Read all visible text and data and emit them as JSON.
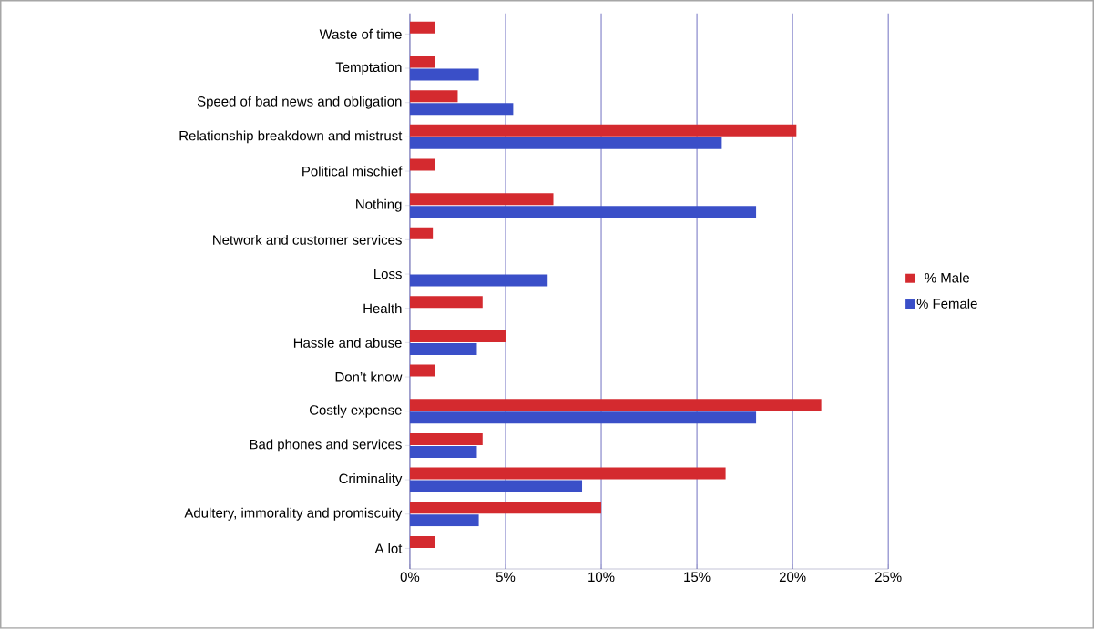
{
  "chart_data": {
    "type": "bar",
    "orientation": "horizontal",
    "categories": [
      "Waste of time",
      "Temptation",
      "Speed of bad news and obligation",
      "Relationship breakdown and mistrust",
      "Political mischief",
      "Nothing",
      "Network and customer services",
      "Loss",
      "Health",
      "Hassle and abuse",
      "Don’t know",
      "Costly expense",
      "Bad phones and services",
      "Criminality",
      "Adultery, immorality and promiscuity",
      "A lot"
    ],
    "series": [
      {
        "name": "% Male",
        "color": "#d42a2f",
        "values": [
          1.3,
          1.3,
          2.5,
          20.2,
          1.3,
          7.5,
          1.2,
          null,
          3.8,
          5.0,
          1.3,
          21.5,
          3.8,
          16.5,
          10.0,
          1.3
        ]
      },
      {
        "name": "% Female",
        "color": "#3a4fc8",
        "values": [
          null,
          3.6,
          5.4,
          16.3,
          null,
          18.1,
          null,
          7.2,
          null,
          3.5,
          null,
          18.1,
          3.5,
          9.0,
          3.6,
          null
        ]
      }
    ],
    "xlim": [
      0,
      25
    ],
    "xticks": [
      {
        "value": 0,
        "label": "0%"
      },
      {
        "value": 5,
        "label": "5%"
      },
      {
        "value": 10,
        "label": "10%"
      },
      {
        "value": 15,
        "label": "15%"
      },
      {
        "value": 20,
        "label": "20%"
      },
      {
        "value": 25,
        "label": "25%"
      }
    ],
    "grid": "x",
    "legend": "right"
  }
}
